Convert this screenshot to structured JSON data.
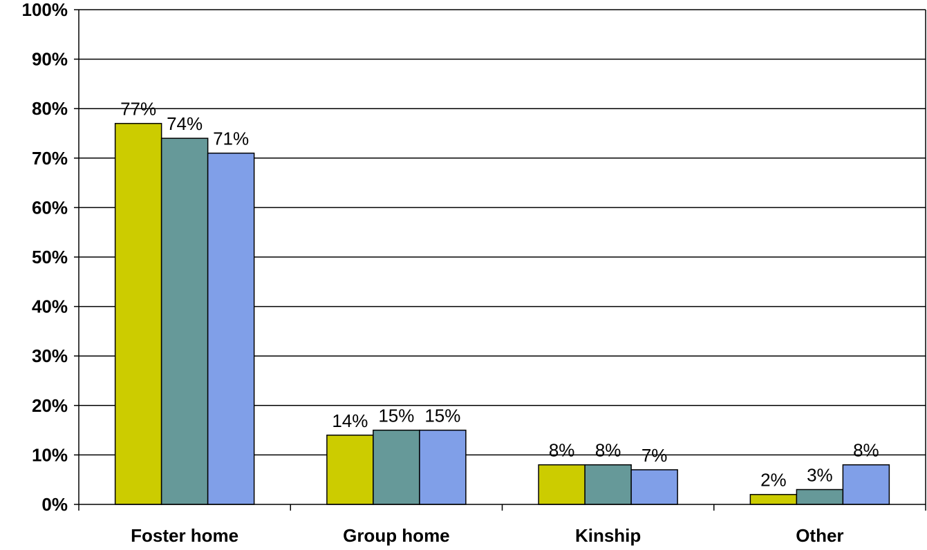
{
  "chart_data": {
    "type": "bar",
    "categories": [
      "Foster home",
      "Group home",
      "Kinship",
      "Other"
    ],
    "series": [
      {
        "color": "#cccc00",
        "values": [
          77,
          14,
          8,
          2
        ],
        "labels": [
          "77%",
          "14%",
          "8%",
          "2%"
        ]
      },
      {
        "color": "#669999",
        "values": [
          74,
          15,
          8,
          3
        ],
        "labels": [
          "74%",
          "15%",
          "8%",
          "3%"
        ]
      },
      {
        "color": "#809fe8",
        "values": [
          71,
          15,
          7,
          8
        ],
        "labels": [
          "71%",
          "15%",
          "7%",
          "8%"
        ]
      }
    ],
    "ylim": [
      0,
      100
    ],
    "yticks": [
      {
        "value": 0,
        "label": "0%"
      },
      {
        "value": 10,
        "label": "10%"
      },
      {
        "value": 20,
        "label": "20%"
      },
      {
        "value": 30,
        "label": "30%"
      },
      {
        "value": 40,
        "label": "40%"
      },
      {
        "value": 50,
        "label": "50%"
      },
      {
        "value": 60,
        "label": "60%"
      },
      {
        "value": 70,
        "label": "70%"
      },
      {
        "value": 80,
        "label": "80%"
      },
      {
        "value": 90,
        "label": "90%"
      },
      {
        "value": 100,
        "label": "100%"
      }
    ],
    "title": "",
    "xlabel": "",
    "ylabel": "",
    "grid": true,
    "legend": "none"
  }
}
